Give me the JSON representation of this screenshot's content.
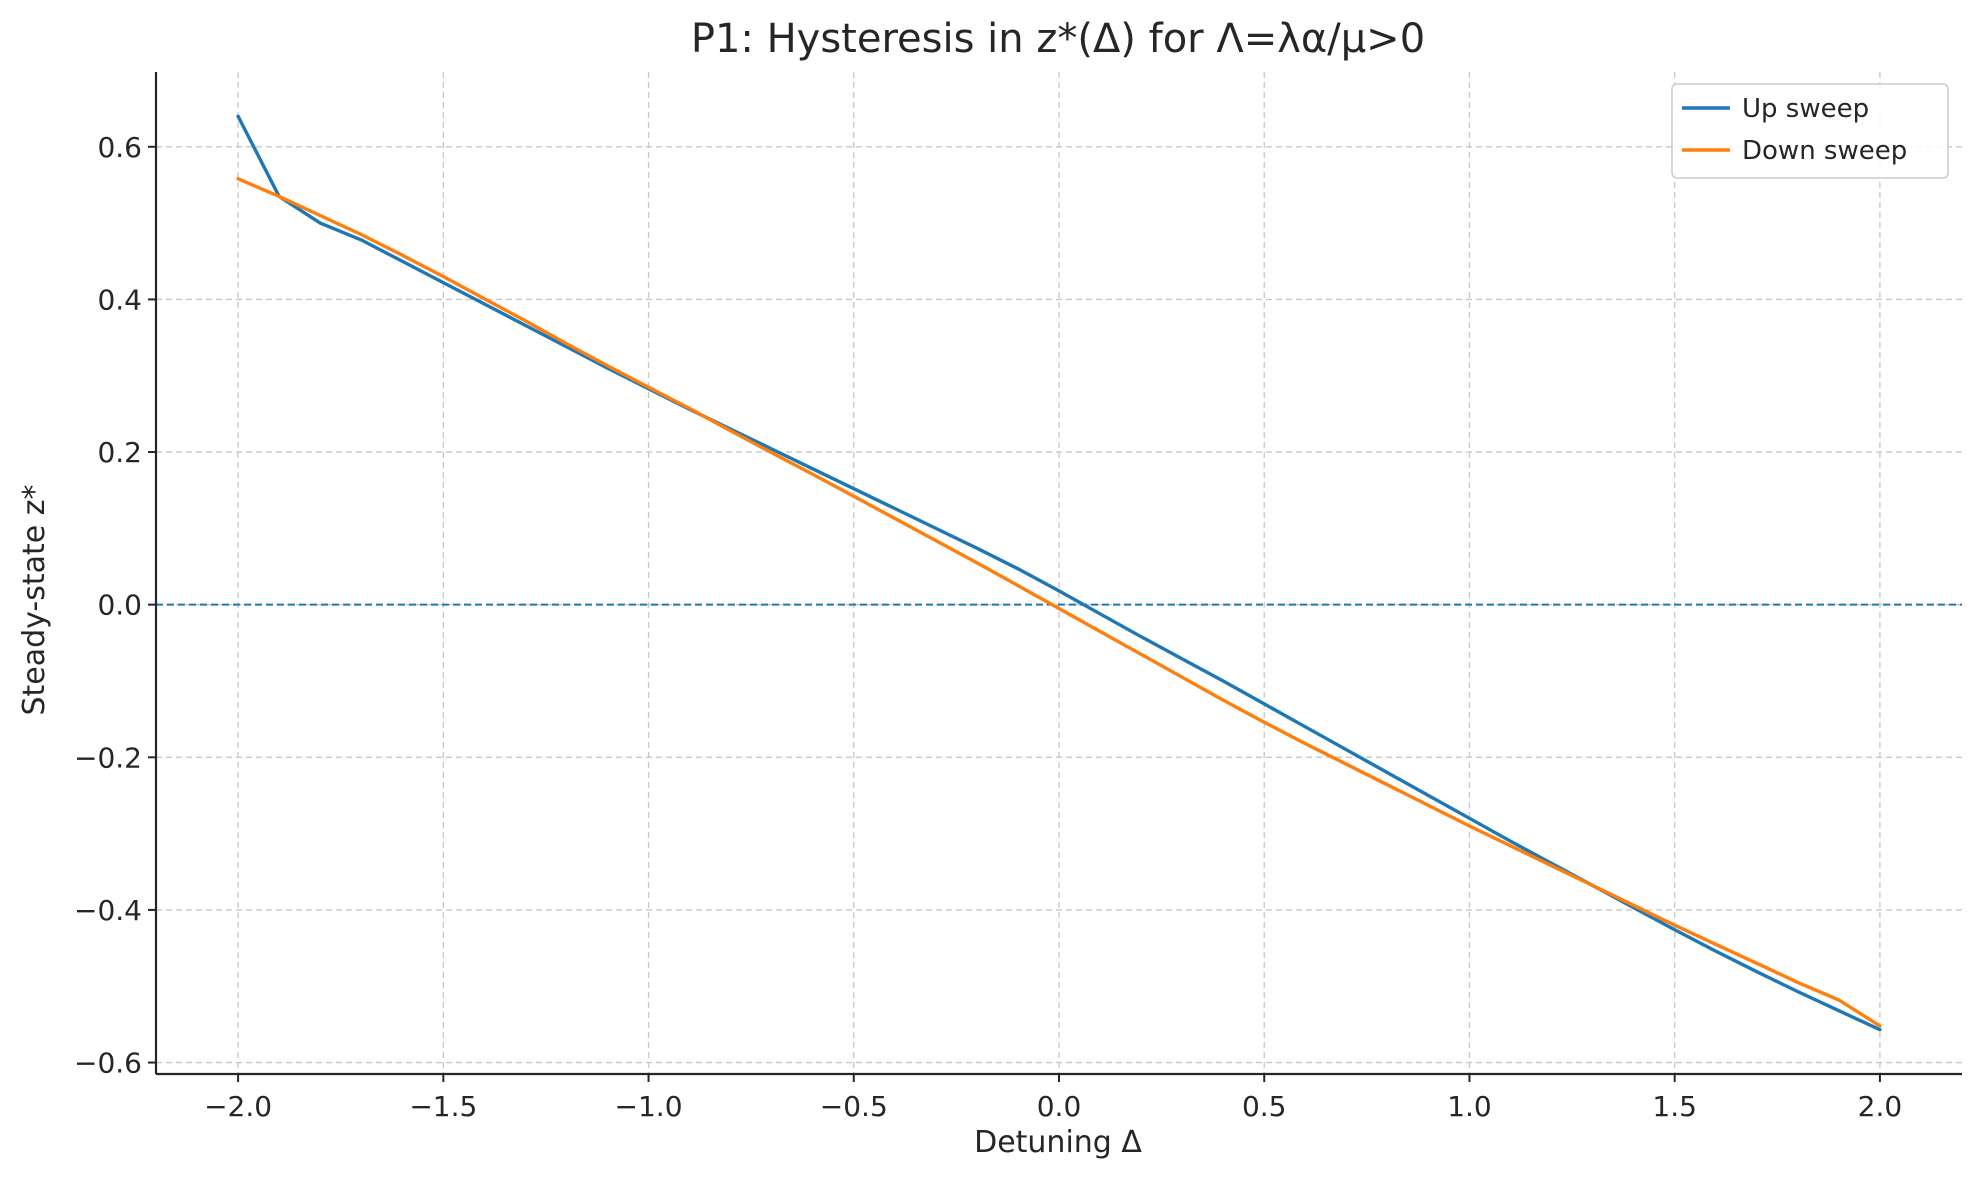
{
  "chart_data": {
    "type": "line",
    "title": "P1: Hysteresis in z*(Δ) for Λ=λα/μ>0",
    "xlabel": "Detuning Δ",
    "ylabel": "Steady-state z*",
    "xlim": [
      -2.2,
      2.2
    ],
    "ylim": [
      -0.615,
      0.698
    ],
    "xticks": [
      -2.0,
      -1.5,
      -1.0,
      -0.5,
      0.0,
      0.5,
      1.0,
      1.5,
      2.0
    ],
    "xtick_labels": [
      "−2.0",
      "−1.5",
      "−1.0",
      "−0.5",
      "0.0",
      "0.5",
      "1.0",
      "1.5",
      "2.0"
    ],
    "yticks": [
      -0.6,
      -0.4,
      -0.2,
      0.0,
      0.2,
      0.4,
      0.6
    ],
    "ytick_labels": [
      "−0.6",
      "−0.4",
      "−0.2",
      "0.0",
      "0.2",
      "0.4",
      "0.6"
    ],
    "grid": true,
    "legend_position": "top-right",
    "reference_line": {
      "y": 0.0,
      "style": "dashed",
      "color": "#1f77b4"
    },
    "series": [
      {
        "name": "Up sweep",
        "color": "#1f77b4",
        "x": [
          -2.0,
          -1.9,
          -1.8,
          -1.7,
          -1.6,
          -1.5,
          -1.4,
          -1.3,
          -1.2,
          -1.1,
          -1.0,
          -0.9,
          -0.8,
          -0.7,
          -0.6,
          -0.5,
          -0.4,
          -0.3,
          -0.2,
          -0.1,
          0.0,
          0.1,
          0.2,
          0.3,
          0.4,
          0.5,
          0.6,
          0.7,
          0.8,
          0.9,
          1.0,
          1.1,
          1.2,
          1.3,
          1.4,
          1.5,
          1.6,
          1.7,
          1.8,
          1.9,
          2.0
        ],
        "y": [
          0.64,
          0.535,
          0.5,
          0.478,
          0.45,
          0.422,
          0.394,
          0.366,
          0.338,
          0.31,
          0.283,
          0.256,
          0.23,
          0.204,
          0.178,
          0.152,
          0.126,
          0.1,
          0.074,
          0.047,
          0.018,
          -0.012,
          -0.042,
          -0.071,
          -0.1,
          -0.13,
          -0.16,
          -0.19,
          -0.22,
          -0.25,
          -0.28,
          -0.31,
          -0.339,
          -0.368,
          -0.397,
          -0.426,
          -0.454,
          -0.481,
          -0.507,
          -0.532,
          -0.557
        ]
      },
      {
        "name": "Down sweep",
        "color": "#ff7f0e",
        "x": [
          -2.0,
          -1.9,
          -1.8,
          -1.7,
          -1.6,
          -1.5,
          -1.4,
          -1.3,
          -1.2,
          -1.1,
          -1.0,
          -0.9,
          -0.8,
          -0.7,
          -0.6,
          -0.5,
          -0.4,
          -0.3,
          -0.2,
          -0.1,
          0.0,
          0.1,
          0.2,
          0.3,
          0.4,
          0.5,
          0.6,
          0.7,
          0.8,
          0.9,
          1.0,
          1.1,
          1.2,
          1.3,
          1.4,
          1.5,
          1.6,
          1.7,
          1.8,
          1.9,
          2.0
        ],
        "y": [
          0.558,
          0.535,
          0.51,
          0.485,
          0.458,
          0.43,
          0.401,
          0.372,
          0.342,
          0.313,
          0.285,
          0.257,
          0.228,
          0.199,
          0.171,
          0.142,
          0.113,
          0.084,
          0.055,
          0.025,
          -0.005,
          -0.035,
          -0.065,
          -0.095,
          -0.125,
          -0.154,
          -0.182,
          -0.209,
          -0.236,
          -0.263,
          -0.29,
          -0.316,
          -0.342,
          -0.368,
          -0.394,
          -0.42,
          -0.445,
          -0.47,
          -0.495,
          -0.518,
          -0.552
        ]
      }
    ]
  }
}
